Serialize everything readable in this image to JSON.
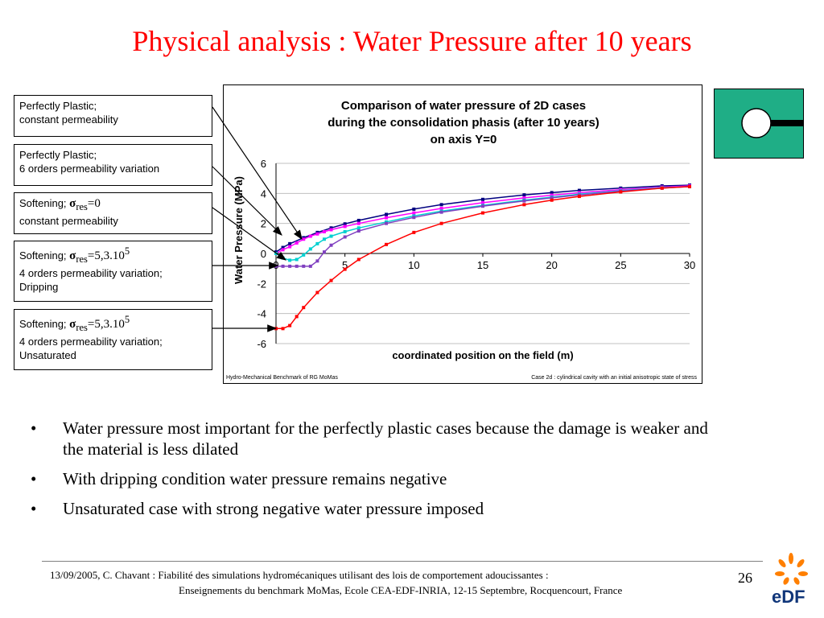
{
  "slide": {
    "title": "Physical analysis : Water Pressure after 10 years",
    "page_number": "26",
    "footer_line1": "13/09/2005, C. Chavant : Fiabilité des simulations hydromécaniques utilisant des lois de comportement adoucissantes :",
    "footer_line2": "Enseignements du benchmark MoMas, Ecole CEA-EDF-INRIA, 12-15 Septembre,  Rocquencourt, France",
    "logo_text": "eDF"
  },
  "legend_boxes": [
    {
      "line1": "Perfectly Plastic;",
      "line2": "constant permeability"
    },
    {
      "line1": "Perfectly Plastic;",
      "line2": "6 orders permeability variation"
    },
    {
      "line1": "Softening;",
      "sigma": "σ",
      "sub": "res",
      "value": "=0",
      "line2": "constant permeability"
    },
    {
      "line1": "Softening;",
      "sigma": "σ",
      "sub": "res",
      "value": "=5,3.10",
      "sup": "5",
      "line2": "4 orders permeability variation;",
      "line3": "Dripping"
    },
    {
      "line1": "Softening;",
      "sigma": "σ",
      "sub": "res",
      "value": "=5,3.10",
      "sup": "5",
      "line2": "4 orders permeability variation;",
      "line3": "Unsaturated"
    }
  ],
  "bullets": [
    "Water pressure most important for the perfectly plastic cases because the damage is weaker and the material is less dilated",
    "With dripping condition water pressure remains negative",
    "Unsaturated case with strong negative water pressure imposed"
  ],
  "chart_footer": {
    "left": "Hydro-Mechanical Benchmark of RG MoMas",
    "right": "Case 2d : cylindrical cavity with an initial anisotropic state of stress"
  },
  "chart_data": {
    "type": "line",
    "title": "Comparison of water pressure of 2D cases during the consolidation phasis (after 10 years) on axis Y=0",
    "title_lines": [
      "Comparison of water pressure of 2D cases",
      "during the consolidation phasis (after 10 years)",
      "on axis Y=0"
    ],
    "xlabel": "coordinated position on the field (m)",
    "ylabel": "Water Pressure (MPa)",
    "xlim": [
      0,
      30
    ],
    "ylim": [
      -6,
      6
    ],
    "xticks": [
      0,
      5,
      10,
      15,
      20,
      25,
      30
    ],
    "yticks": [
      -6,
      -4,
      -2,
      0,
      2,
      4,
      6
    ],
    "grid": "horizontal",
    "series": [
      {
        "color": "#000080",
        "x": [
          0,
          0.5,
          1,
          2,
          3,
          4,
          5,
          6,
          8,
          10,
          12,
          15,
          18,
          20,
          22,
          25,
          28,
          30
        ],
        "y": [
          0.1,
          0.4,
          0.65,
          1.05,
          1.4,
          1.7,
          1.97,
          2.2,
          2.6,
          2.95,
          3.25,
          3.6,
          3.9,
          4.05,
          4.2,
          4.35,
          4.5,
          4.55
        ]
      },
      {
        "color": "#ff00ff",
        "x": [
          0,
          0.5,
          1,
          1.5,
          2,
          2.5,
          3,
          3.5,
          4,
          5,
          6,
          8,
          10,
          12,
          15,
          18,
          20,
          22,
          25,
          28,
          30
        ],
        "y": [
          0.0,
          0.25,
          0.45,
          0.7,
          0.95,
          1.15,
          1.3,
          1.45,
          1.58,
          1.8,
          2.0,
          2.38,
          2.7,
          3.0,
          3.38,
          3.7,
          3.88,
          4.05,
          4.25,
          4.42,
          4.5
        ]
      },
      {
        "color": "#00d0d0",
        "x": [
          0,
          0.5,
          1,
          1.5,
          2,
          2.5,
          3,
          3.5,
          4,
          5,
          6,
          8,
          10,
          12,
          15,
          18,
          20,
          22,
          25,
          28,
          30
        ],
        "y": [
          0.0,
          -0.3,
          -0.45,
          -0.4,
          -0.1,
          0.3,
          0.65,
          0.95,
          1.15,
          1.45,
          1.7,
          2.1,
          2.5,
          2.82,
          3.2,
          3.55,
          3.75,
          3.95,
          4.18,
          4.38,
          4.45
        ]
      },
      {
        "color": "#8040c0",
        "x": [
          0,
          0.5,
          1,
          1.5,
          2,
          2.5,
          3,
          3.5,
          4,
          5,
          6,
          8,
          10,
          12,
          15,
          18,
          20,
          22,
          25,
          28,
          30
        ],
        "y": [
          -0.85,
          -0.85,
          -0.85,
          -0.85,
          -0.85,
          -0.85,
          -0.5,
          0.1,
          0.55,
          1.1,
          1.5,
          2.0,
          2.4,
          2.75,
          3.15,
          3.5,
          3.7,
          3.9,
          4.15,
          4.35,
          4.45
        ]
      },
      {
        "color": "#ff0000",
        "x": [
          0,
          0.5,
          1,
          1.5,
          2,
          3,
          4,
          5,
          6,
          8,
          10,
          12,
          15,
          18,
          20,
          22,
          25,
          28,
          30
        ],
        "y": [
          -5.0,
          -5.0,
          -4.8,
          -4.2,
          -3.6,
          -2.6,
          -1.8,
          -1.05,
          -0.4,
          0.6,
          1.4,
          2.0,
          2.7,
          3.25,
          3.55,
          3.8,
          4.1,
          4.35,
          4.45
        ]
      }
    ]
  }
}
